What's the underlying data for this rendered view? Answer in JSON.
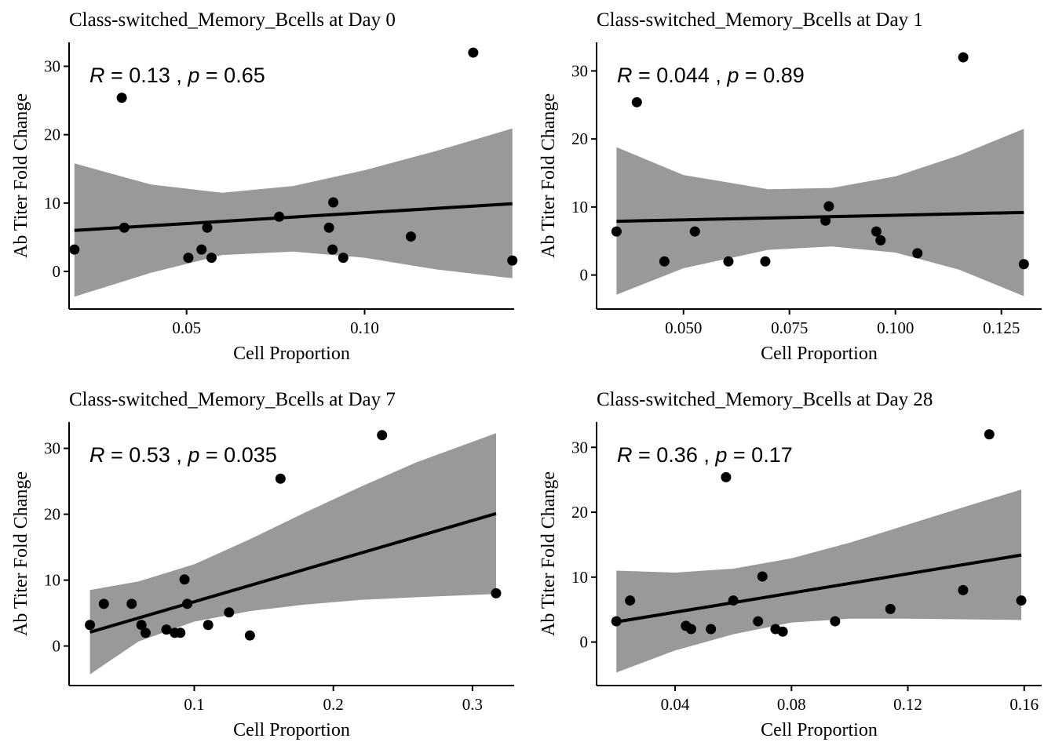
{
  "chart_data": [
    {
      "type": "scatter",
      "title": "Class-switched_Memory_Bcells at Day 0",
      "xlabel": "Cell Proportion",
      "ylabel": "Ab Titer Fold Change",
      "annotation": {
        "R": "0.13",
        "p": "0.65"
      },
      "xlim": [
        0.017,
        0.142
      ],
      "ylim": [
        -5.5,
        33.5
      ],
      "xticks": [
        {
          "value": 0.05,
          "label": "0.05"
        },
        {
          "value": 0.1,
          "label": "0.10"
        }
      ],
      "yticks": [
        {
          "value": 0,
          "label": "0"
        },
        {
          "value": 10,
          "label": "10"
        },
        {
          "value": 20,
          "label": "20"
        },
        {
          "value": 30,
          "label": "30"
        }
      ],
      "points": [
        {
          "x": 0.0185,
          "y": 3.2
        },
        {
          "x": 0.0318,
          "y": 25.4
        },
        {
          "x": 0.0325,
          "y": 6.4
        },
        {
          "x": 0.0505,
          "y": 2.0
        },
        {
          "x": 0.0542,
          "y": 3.2
        },
        {
          "x": 0.0558,
          "y": 6.4
        },
        {
          "x": 0.057,
          "y": 2.0
        },
        {
          "x": 0.076,
          "y": 8.0
        },
        {
          "x": 0.09,
          "y": 6.4
        },
        {
          "x": 0.091,
          "y": 3.2
        },
        {
          "x": 0.0912,
          "y": 10.1
        },
        {
          "x": 0.094,
          "y": 2.0
        },
        {
          "x": 0.113,
          "y": 5.1
        },
        {
          "x": 0.1305,
          "y": 32.0
        },
        {
          "x": 0.1415,
          "y": 1.6
        }
      ],
      "fit": {
        "x": [
          0.0185,
          0.1415
        ],
        "y": [
          6.0,
          9.9
        ]
      },
      "ci": {
        "x": [
          0.0185,
          0.04,
          0.06,
          0.08,
          0.1,
          0.12,
          0.1415
        ],
        "upper": [
          15.8,
          12.7,
          11.5,
          12.5,
          14.8,
          17.6,
          20.9
        ],
        "lower": [
          -3.7,
          -0.2,
          2.4,
          2.9,
          2.0,
          0.3,
          -1.0
        ]
      }
    },
    {
      "type": "scatter",
      "title": "Class-switched_Memory_Bcells at Day 1",
      "xlabel": "Cell Proportion",
      "ylabel": "Ab Titer Fold Change",
      "annotation": {
        "R": "0.044",
        "p": "0.89"
      },
      "xlim": [
        0.0295,
        0.1345
      ],
      "ylim": [
        -5.0,
        34.2
      ],
      "xticks": [
        {
          "value": 0.05,
          "label": "0.050"
        },
        {
          "value": 0.075,
          "label": "0.075"
        },
        {
          "value": 0.1,
          "label": "0.100"
        },
        {
          "value": 0.125,
          "label": "0.125"
        }
      ],
      "yticks": [
        {
          "value": 0,
          "label": "0"
        },
        {
          "value": 10,
          "label": "10"
        },
        {
          "value": 20,
          "label": "20"
        },
        {
          "value": 30,
          "label": "30"
        }
      ],
      "points": [
        {
          "x": 0.0342,
          "y": 6.4
        },
        {
          "x": 0.039,
          "y": 25.4
        },
        {
          "x": 0.0455,
          "y": 2.0
        },
        {
          "x": 0.0527,
          "y": 6.4
        },
        {
          "x": 0.0606,
          "y": 2.0
        },
        {
          "x": 0.0693,
          "y": 2.0
        },
        {
          "x": 0.0835,
          "y": 8.0
        },
        {
          "x": 0.0843,
          "y": 10.1
        },
        {
          "x": 0.0955,
          "y": 6.4
        },
        {
          "x": 0.0965,
          "y": 5.1
        },
        {
          "x": 0.1052,
          "y": 3.2
        },
        {
          "x": 0.116,
          "y": 32.0
        },
        {
          "x": 0.1303,
          "y": 1.6
        }
      ],
      "fit": {
        "x": [
          0.0342,
          0.1303
        ],
        "y": [
          7.9,
          9.2
        ]
      },
      "ci": {
        "x": [
          0.0342,
          0.05,
          0.07,
          0.085,
          0.1,
          0.115,
          0.1303
        ],
        "upper": [
          18.8,
          14.7,
          12.6,
          12.8,
          14.5,
          17.6,
          21.5
        ],
        "lower": [
          -2.9,
          1.0,
          3.7,
          4.2,
          3.3,
          0.8,
          -3.1
        ]
      }
    },
    {
      "type": "scatter",
      "title": "Class-switched_Memory_Bcells at Day 7",
      "xlabel": "Cell Proportion",
      "ylabel": "Ab Titer Fold Change",
      "annotation": {
        "R": "0.53",
        "p": "0.035"
      },
      "xlim": [
        0.01,
        0.33
      ],
      "ylim": [
        -6.0,
        34.0
      ],
      "xticks": [
        {
          "value": 0.1,
          "label": "0.1"
        },
        {
          "value": 0.2,
          "label": "0.2"
        },
        {
          "value": 0.3,
          "label": "0.3"
        }
      ],
      "yticks": [
        {
          "value": 0,
          "label": "0"
        },
        {
          "value": 10,
          "label": "10"
        },
        {
          "value": 20,
          "label": "20"
        },
        {
          "value": 30,
          "label": "30"
        }
      ],
      "points": [
        {
          "x": 0.025,
          "y": 3.2
        },
        {
          "x": 0.035,
          "y": 6.4
        },
        {
          "x": 0.055,
          "y": 6.4
        },
        {
          "x": 0.062,
          "y": 3.2
        },
        {
          "x": 0.065,
          "y": 2.0
        },
        {
          "x": 0.08,
          "y": 2.5
        },
        {
          "x": 0.086,
          "y": 2.0
        },
        {
          "x": 0.09,
          "y": 2.0
        },
        {
          "x": 0.093,
          "y": 10.1
        },
        {
          "x": 0.095,
          "y": 6.4
        },
        {
          "x": 0.11,
          "y": 3.2
        },
        {
          "x": 0.125,
          "y": 5.1
        },
        {
          "x": 0.14,
          "y": 1.6
        },
        {
          "x": 0.162,
          "y": 25.4
        },
        {
          "x": 0.235,
          "y": 32.0
        },
        {
          "x": 0.317,
          "y": 8.0
        }
      ],
      "fit": {
        "x": [
          0.025,
          0.317
        ],
        "y": [
          2.1,
          20.1
        ]
      },
      "ci": {
        "x": [
          0.025,
          0.06,
          0.1,
          0.14,
          0.18,
          0.22,
          0.26,
          0.317
        ],
        "upper": [
          8.5,
          9.8,
          12.4,
          16.2,
          20.3,
          24.2,
          27.9,
          32.3
        ],
        "lower": [
          -4.3,
          0.7,
          3.7,
          5.3,
          6.3,
          7.0,
          7.4,
          7.9
        ]
      }
    },
    {
      "type": "scatter",
      "title": "Class-switched_Memory_Bcells at Day 28",
      "xlabel": "Cell Proportion",
      "ylabel": "Ab Titer Fold Change",
      "annotation": {
        "R": "0.36",
        "p": "0.17"
      },
      "xlim": [
        0.013,
        0.166
      ],
      "ylim": [
        -6.7,
        33.9
      ],
      "xticks": [
        {
          "value": 0.04,
          "label": "0.04"
        },
        {
          "value": 0.08,
          "label": "0.08"
        },
        {
          "value": 0.12,
          "label": "0.12"
        },
        {
          "value": 0.16,
          "label": "0.16"
        }
      ],
      "yticks": [
        {
          "value": 0,
          "label": "0"
        },
        {
          "value": 10,
          "label": "10"
        },
        {
          "value": 20,
          "label": "20"
        },
        {
          "value": 30,
          "label": "30"
        }
      ],
      "points": [
        {
          "x": 0.0198,
          "y": 3.2
        },
        {
          "x": 0.0245,
          "y": 6.4
        },
        {
          "x": 0.0437,
          "y": 2.5
        },
        {
          "x": 0.0455,
          "y": 2.0
        },
        {
          "x": 0.0523,
          "y": 2.0
        },
        {
          "x": 0.0575,
          "y": 25.4
        },
        {
          "x": 0.06,
          "y": 6.4
        },
        {
          "x": 0.0685,
          "y": 3.2
        },
        {
          "x": 0.07,
          "y": 10.1
        },
        {
          "x": 0.0745,
          "y": 2.0
        },
        {
          "x": 0.077,
          "y": 1.6
        },
        {
          "x": 0.095,
          "y": 3.2
        },
        {
          "x": 0.114,
          "y": 5.1
        },
        {
          "x": 0.139,
          "y": 8.0
        },
        {
          "x": 0.148,
          "y": 32.0
        },
        {
          "x": 0.159,
          "y": 6.4
        }
      ],
      "fit": {
        "x": [
          0.0198,
          0.159
        ],
        "y": [
          3.1,
          13.4
        ]
      },
      "ci": {
        "x": [
          0.0198,
          0.04,
          0.06,
          0.08,
          0.1,
          0.12,
          0.14,
          0.159
        ],
        "upper": [
          11.0,
          10.7,
          11.3,
          12.9,
          15.3,
          18.1,
          20.9,
          23.5
        ],
        "lower": [
          -4.7,
          -1.3,
          1.2,
          3.0,
          3.6,
          3.6,
          3.5,
          3.4
        ]
      }
    }
  ]
}
